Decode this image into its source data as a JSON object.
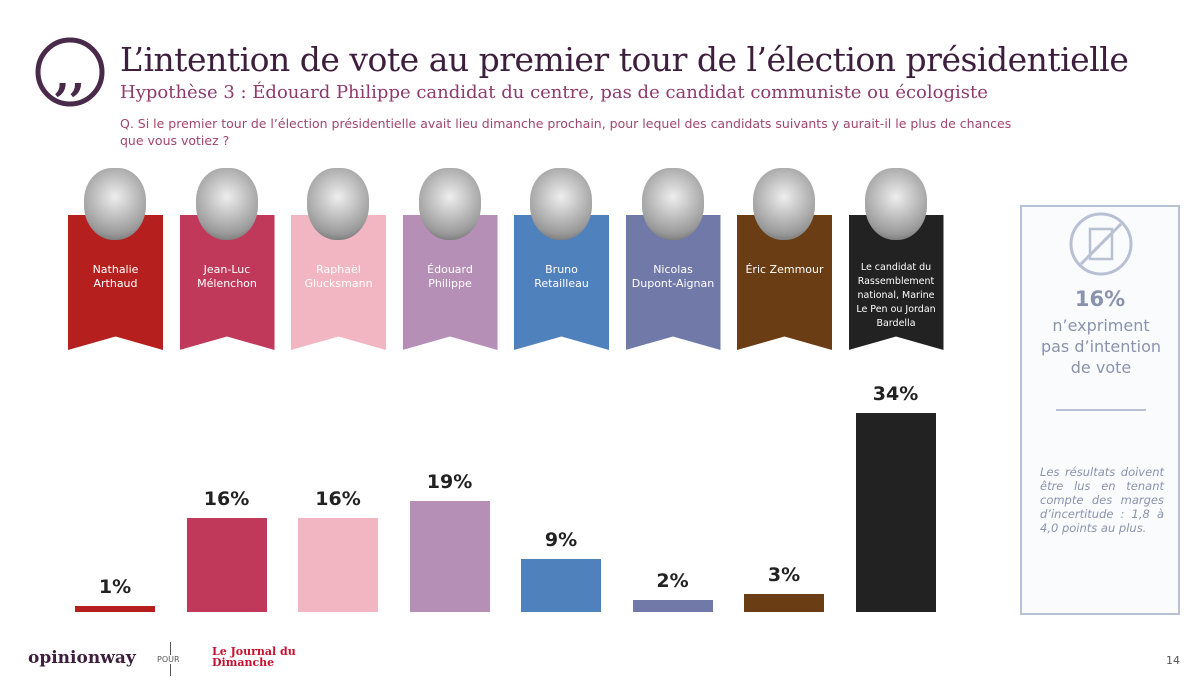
{
  "chart_data": {
    "type": "bar",
    "title": "L’intention de vote au premier tour de l’élection présidentielle",
    "subtitle": "Hypothèse 3 : Édouard Philippe candidat du centre, pas de candidat communiste ou écologiste",
    "question": "Q. Si le premier tour de l’élection présidentielle avait lieu dimanche prochain, pour lequel des candidats suivants y aurait-il le plus de chances que vous votiez ?",
    "categories": [
      "Nathalie Arthaud",
      "Jean-Luc Mélenchon",
      "Raphaël Glucksmann",
      "Édouard Philippe",
      "Bruno Retailleau",
      "Nicolas Dupont-Aignan",
      "Éric Zemmour",
      "Le candidat du Rassemblement national, Marine Le Pen ou Jordan Bardella"
    ],
    "values": [
      1,
      16,
      16,
      19,
      9,
      2,
      3,
      34
    ],
    "value_labels": [
      "1%",
      "16%",
      "16%",
      "19%",
      "9%",
      "2%",
      "3%",
      "34%"
    ],
    "colors": [
      "#b5201e",
      "#c0395a",
      "#f2b6c2",
      "#b68fb6",
      "#4f81bd",
      "#7179a8",
      "#6b3d14",
      "#222222"
    ]
  },
  "side_panel": {
    "percentage": "16%",
    "text": "n’expriment pas d’intention de vote",
    "note": "Les résultats doivent être lus en tenant compte des marges d’incertitude : 1,8 à 4,0 points au plus."
  },
  "footer": {
    "brand": "opinionway",
    "for": "POUR",
    "partner": "Le Journal du Dimanche",
    "page": "14"
  }
}
